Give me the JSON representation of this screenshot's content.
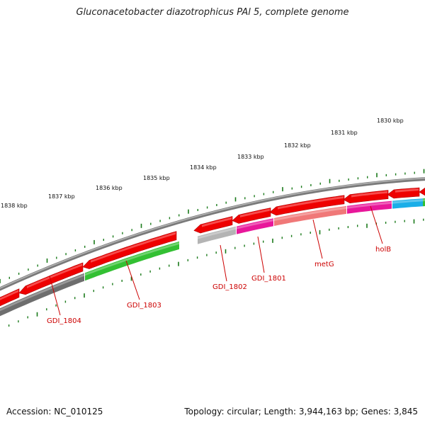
{
  "header": {
    "title": "Gluconacetobacter diazotrophicus PAl 5, complete genome"
  },
  "footer": {
    "accession": "Accession: NC_010125",
    "summary": "Topology: circular; Length: 3,944,163 bp; Genes: 3,845"
  },
  "map": {
    "colors": {
      "backbone": "#8a8a8a",
      "tick": "#1a7a1a",
      "gene_label": "#cc0000",
      "forward_gene": "#ee0000",
      "reverse_gray": "#6e6e6e",
      "reverse_green": "#33c033",
      "reverse_lightgray": "#b4b4b4",
      "reverse_magenta": "#e8179a",
      "reverse_salmon": "#f07878",
      "reverse_cyan": "#1aaee8"
    },
    "coordinate_labels": [
      "1838 kbp",
      "1837 kbp",
      "1836 kbp",
      "1835 kbp",
      "1834 kbp",
      "1833 kbp",
      "1832 kbp",
      "1831 kbp",
      "1830 kbp"
    ],
    "gene_labels": [
      "GDI_1804",
      "GDI_1803",
      "GDI_1802",
      "GDI_1801",
      "metG",
      "holB"
    ],
    "forward_genes": [
      {
        "id": "f1"
      },
      {
        "id": "f2"
      },
      {
        "id": "f3"
      },
      {
        "id": "f4"
      },
      {
        "id": "f5"
      },
      {
        "id": "f6"
      },
      {
        "id": "f7"
      },
      {
        "id": "f8"
      },
      {
        "id": "f9"
      },
      {
        "id": "f10"
      }
    ],
    "reverse_genes": [
      {
        "id": "r1",
        "color": "reverse_gray"
      },
      {
        "id": "r2",
        "color": "reverse_green"
      },
      {
        "id": "r3",
        "color": "reverse_lightgray"
      },
      {
        "id": "r4",
        "color": "reverse_magenta"
      },
      {
        "id": "r5",
        "color": "reverse_salmon"
      },
      {
        "id": "r6",
        "color": "reverse_magenta"
      },
      {
        "id": "r7",
        "color": "reverse_cyan"
      }
    ]
  }
}
